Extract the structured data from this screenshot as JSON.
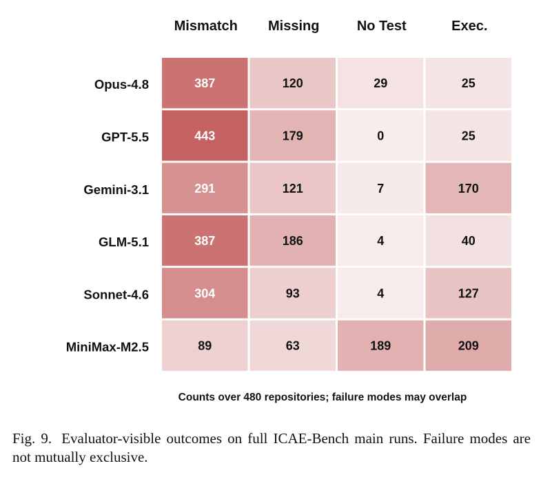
{
  "chart_data": {
    "type": "heatmap",
    "columns": [
      "Mismatch",
      "Missing",
      "No Test",
      "Exec."
    ],
    "rows": [
      "Opus-4.8",
      "GPT-5.5",
      "Gemini-3.1",
      "GLM-5.1",
      "Sonnet-4.6",
      "MiniMax-M2.5"
    ],
    "values": [
      [
        387,
        120,
        29,
        25
      ],
      [
        443,
        179,
        0,
        25
      ],
      [
        291,
        121,
        7,
        170
      ],
      [
        387,
        186,
        4,
        40
      ],
      [
        304,
        93,
        4,
        127
      ],
      [
        89,
        63,
        189,
        209
      ]
    ],
    "note": "Counts over 480 repositories; failure modes may overlap",
    "colormap": {
      "low": "#f8ecec",
      "high": "#c05656"
    },
    "value_range": [
      0,
      480
    ],
    "light_text_threshold": 260
  },
  "caption": {
    "label": "Fig. 9.",
    "text": "Evaluator-visible outcomes on full ICAE-Bench main runs. Failure modes are not mutually exclusive."
  }
}
